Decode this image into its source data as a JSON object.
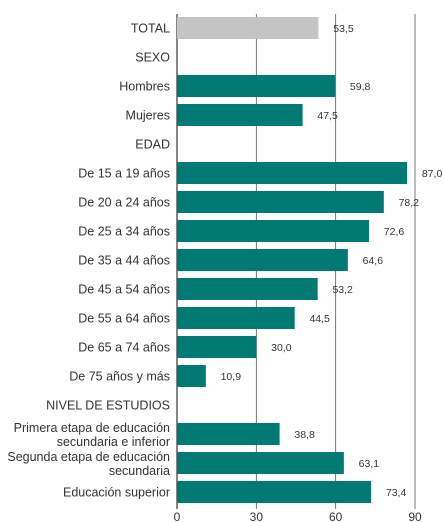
{
  "chart_data": {
    "type": "bar",
    "orientation": "horizontal",
    "title": "",
    "xlabel": "",
    "ylabel": "",
    "xlim": [
      0,
      90
    ],
    "xticks": [
      0,
      30,
      60,
      90
    ],
    "xtick_labels": [
      "0",
      "30",
      "60",
      "90"
    ],
    "grid": true,
    "legend": "none",
    "colors": {
      "total": "#c4c4c4",
      "bar": "#007a73",
      "grid": "#555555",
      "axis": "#333333"
    },
    "rows": [
      {
        "label": "TOTAL",
        "value": 53.5,
        "value_label": "53,5",
        "kind": "total"
      },
      {
        "label": "SEXO",
        "kind": "header"
      },
      {
        "label": "Hombres",
        "value": 59.8,
        "value_label": "59,8",
        "kind": "bar"
      },
      {
        "label": "Mujeres",
        "value": 47.5,
        "value_label": "47,5",
        "kind": "bar"
      },
      {
        "label": "EDAD",
        "kind": "header"
      },
      {
        "label": "De 15 a 19 años",
        "value": 87.0,
        "value_label": "87,0",
        "kind": "bar"
      },
      {
        "label": "De 20 a 24 años",
        "value": 78.2,
        "value_label": "78,2",
        "kind": "bar"
      },
      {
        "label": "De 25 a 34 años",
        "value": 72.6,
        "value_label": "72,6",
        "kind": "bar"
      },
      {
        "label": "De 35 a 44 años",
        "value": 64.6,
        "value_label": "64,6",
        "kind": "bar"
      },
      {
        "label": "De 45 a 54 años",
        "value": 53.2,
        "value_label": "53,2",
        "kind": "bar"
      },
      {
        "label": "De 55 a 64 años",
        "value": 44.5,
        "value_label": "44,5",
        "kind": "bar"
      },
      {
        "label": "De 65 a 74 años",
        "value": 30.0,
        "value_label": "30,0",
        "kind": "bar"
      },
      {
        "label": "De 75 años y más",
        "value": 10.9,
        "value_label": "10,9",
        "kind": "bar"
      },
      {
        "label": "NIVEL DE ESTUDIOS",
        "kind": "header"
      },
      {
        "label": [
          "Primera etapa de educación",
          "secundaria e inferior"
        ],
        "value": 38.8,
        "value_label": "38,8",
        "kind": "bar"
      },
      {
        "label": [
          "Segunda etapa de educación",
          "secundaria"
        ],
        "value": 63.1,
        "value_label": "63,1",
        "kind": "bar"
      },
      {
        "label": "Educación superior",
        "value": 73.4,
        "value_label": "73,4",
        "kind": "bar"
      }
    ]
  }
}
